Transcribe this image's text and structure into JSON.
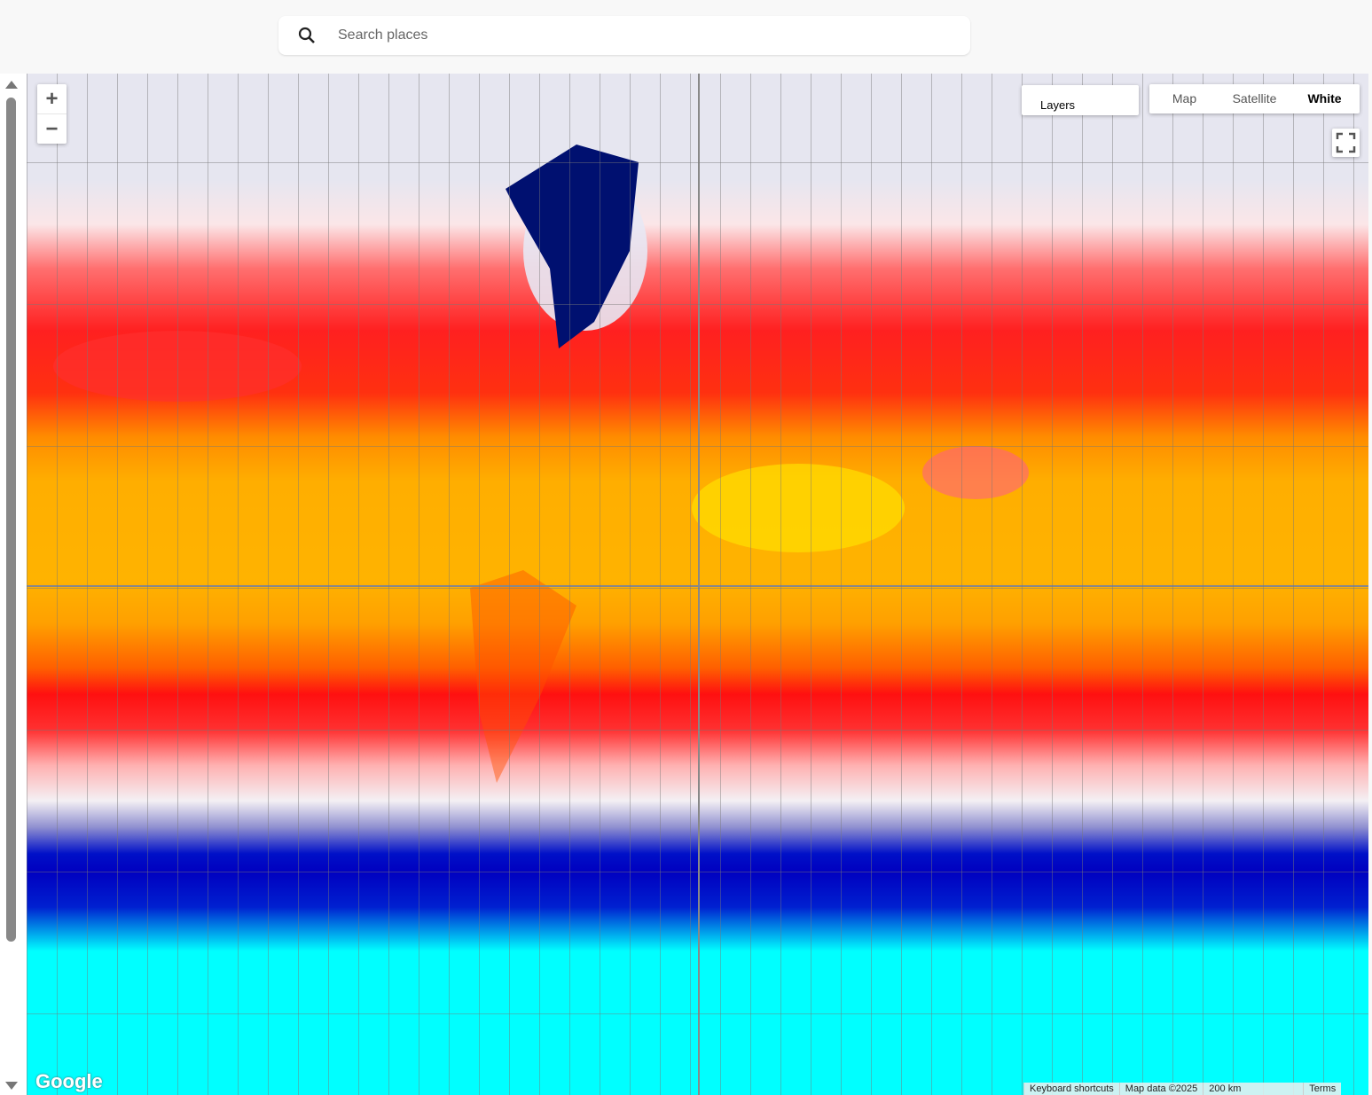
{
  "search": {
    "placeholder": "Search places"
  },
  "zoom": {
    "in": "+",
    "out": "−"
  },
  "layers": "Layers",
  "map_types": [
    "Map",
    "Satellite",
    "White"
  ],
  "logo": "Google",
  "attribution": {
    "shortcuts": "Keyboard shortcuts",
    "map_data": "Map data ©2025",
    "scale": "200 km",
    "terms": "Terms"
  }
}
